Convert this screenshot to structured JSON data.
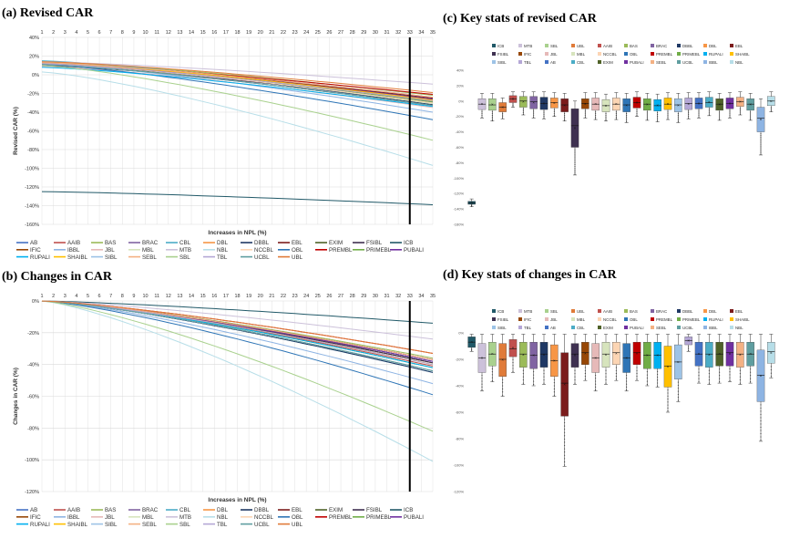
{
  "figure": {
    "panel_a_title": "(a) Revised CAR",
    "panel_b_title": "(b) Changes in CAR",
    "panel_c_title": "(c) Key stats of revised CAR",
    "panel_d_title": "(d) Key stats of changes in CAR"
  },
  "banks": [
    "AB",
    "AAIB",
    "BAS",
    "BRAC",
    "CBL",
    "DBL",
    "DBBL",
    "EBL",
    "EXIM",
    "FSIBL",
    "ICB",
    "IFIC",
    "IBBL",
    "JBL",
    "MBL",
    "MTB",
    "NBL",
    "NCCBL",
    "OBL",
    "PREMBL",
    "PRIMEBL",
    "PUBALI",
    "RUPALI",
    "SHAIBL",
    "SIBL",
    "SEBL",
    "SBL",
    "TBL",
    "UCBL",
    "UBL"
  ],
  "box_banks": [
    "ICB",
    "MTB",
    "SBL",
    "UBL",
    "AAIB",
    "BAS",
    "BRAC",
    "DBBL",
    "DBL",
    "EBL",
    "FSIBL",
    "IFIC",
    "JBL",
    "MBL",
    "NCCBL",
    "OBL",
    "PREMBL",
    "PRIMEBL",
    "RUPALI",
    "SHAIBL",
    "SIBL",
    "TBL",
    "AB",
    "CBL",
    "EXIM",
    "PUBALI",
    "SEBL",
    "UCBL",
    "IBBL",
    "NBL"
  ],
  "colors": [
    "#4472c4",
    "#c0504d",
    "#9bbb59",
    "#8064a2",
    "#4bacc6",
    "#f79646",
    "#1f3864",
    "#7b1c1c",
    "#4f6228",
    "#3f3151",
    "#215968",
    "#974706",
    "#8eb4e3",
    "#e6b9b8",
    "#d7e4bd",
    "#ccc1da",
    "#b7dee8",
    "#fcd5b4",
    "#2e75b6",
    "#c00000",
    "#70ad47",
    "#7030a0",
    "#00b0f0",
    "#ffc000",
    "#9dc3e6",
    "#f4b183",
    "#a9d18e",
    "#b4a7d6",
    "#5f9ea0",
    "#e07b39"
  ],
  "chart_data": [
    {
      "type": "line",
      "title": "(a) Revised CAR",
      "xlabel": "Increases in NPL (%)",
      "ylabel": "Revised CAR (%)",
      "x": [
        1,
        2,
        3,
        4,
        5,
        6,
        7,
        8,
        9,
        10,
        11,
        12,
        13,
        14,
        15,
        16,
        17,
        18,
        19,
        20,
        21,
        22,
        23,
        24,
        25,
        26,
        27,
        28,
        29,
        30,
        31,
        32,
        33,
        34,
        35
      ],
      "xlim": [
        1,
        35
      ],
      "ylim": [
        -160,
        40
      ],
      "yticks": [
        40,
        20,
        0,
        -20,
        -40,
        -60,
        -80,
        -100,
        -120,
        -140,
        -160
      ],
      "vline_x": 33,
      "legend": "bottom",
      "series": [
        {
          "name": "AB",
          "start": 12,
          "end": -26
        },
        {
          "name": "AAIB",
          "start": 13,
          "end": -28
        },
        {
          "name": "BAS",
          "start": 14,
          "end": -22
        },
        {
          "name": "BRAC",
          "start": 13,
          "end": -24
        },
        {
          "name": "CBL",
          "start": 15,
          "end": -30
        },
        {
          "name": "DBL",
          "start": 12,
          "end": -27
        },
        {
          "name": "DBBL",
          "start": 13,
          "end": -32
        },
        {
          "name": "EBL",
          "start": 12,
          "end": -25
        },
        {
          "name": "EXIM",
          "start": 11,
          "end": -28
        },
        {
          "name": "FSIBL",
          "start": 10,
          "end": -29
        },
        {
          "name": "ICB",
          "start": -125,
          "end": -139
        },
        {
          "name": "IFIC",
          "start": 11,
          "end": -33
        },
        {
          "name": "IBBL",
          "start": 12,
          "end": -40
        },
        {
          "name": "JBL",
          "start": 9,
          "end": -35
        },
        {
          "name": "MBL",
          "start": 13,
          "end": -31
        },
        {
          "name": "MTB",
          "start": 14,
          "end": -10
        },
        {
          "name": "NBL",
          "start": 3,
          "end": -97
        },
        {
          "name": "NCCBL",
          "start": 12,
          "end": -30
        },
        {
          "name": "OBL",
          "start": 11,
          "end": -48
        },
        {
          "name": "PREMBL",
          "start": 12,
          "end": -21
        },
        {
          "name": "PRIMEBL",
          "start": 13,
          "end": -29
        },
        {
          "name": "PUBALI",
          "start": 12,
          "end": -26
        },
        {
          "name": "RUPALI",
          "start": 8,
          "end": -34
        },
        {
          "name": "SHAIBL",
          "start": 13,
          "end": -27
        },
        {
          "name": "SIBL",
          "start": 11,
          "end": -33
        },
        {
          "name": "SEBL",
          "start": 13,
          "end": -24
        },
        {
          "name": "SBL",
          "start": 10,
          "end": -70
        },
        {
          "name": "TBL",
          "start": 12,
          "end": -28
        },
        {
          "name": "UCBL",
          "start": 11,
          "end": -33
        },
        {
          "name": "UBL",
          "start": 14,
          "end": -19
        }
      ]
    },
    {
      "type": "line",
      "title": "(b) Changes in CAR",
      "xlabel": "Increases in NPL (%)",
      "ylabel": "Changes in CAR (%)",
      "x": [
        1,
        2,
        3,
        4,
        5,
        6,
        7,
        8,
        9,
        10,
        11,
        12,
        13,
        14,
        15,
        16,
        17,
        18,
        19,
        20,
        21,
        22,
        23,
        24,
        25,
        26,
        27,
        28,
        29,
        30,
        31,
        32,
        33,
        34,
        35
      ],
      "xlim": [
        1,
        35
      ],
      "ylim": [
        -120,
        0
      ],
      "yticks": [
        0,
        -20,
        -40,
        -60,
        -80,
        -100,
        -120
      ],
      "vline_x": 33,
      "legend": "bottom",
      "series": [
        {
          "name": "AB",
          "end": -38
        },
        {
          "name": "AAIB",
          "end": -41
        },
        {
          "name": "BAS",
          "end": -36
        },
        {
          "name": "BRAC",
          "end": -37
        },
        {
          "name": "CBL",
          "end": -45
        },
        {
          "name": "DBL",
          "end": -39
        },
        {
          "name": "DBBL",
          "end": -45
        },
        {
          "name": "EBL",
          "end": -37
        },
        {
          "name": "EXIM",
          "end": -39
        },
        {
          "name": "FSIBL",
          "end": -39
        },
        {
          "name": "ICB",
          "end": -14
        },
        {
          "name": "IFIC",
          "end": -44
        },
        {
          "name": "IBBL",
          "end": -52
        },
        {
          "name": "JBL",
          "end": -44
        },
        {
          "name": "MBL",
          "end": -44
        },
        {
          "name": "MTB",
          "end": -24
        },
        {
          "name": "NBL",
          "end": -101
        },
        {
          "name": "NCCBL",
          "end": -42
        },
        {
          "name": "OBL",
          "end": -59
        },
        {
          "name": "PREMBL",
          "end": -33
        },
        {
          "name": "PRIMEBL",
          "end": -42
        },
        {
          "name": "PUBALI",
          "end": -38
        },
        {
          "name": "RUPALI",
          "end": -42
        },
        {
          "name": "SHAIBL",
          "end": -40
        },
        {
          "name": "SIBL",
          "end": -44
        },
        {
          "name": "SEBL",
          "end": -37
        },
        {
          "name": "SBL",
          "end": -82
        },
        {
          "name": "TBL",
          "end": -40
        },
        {
          "name": "UCBL",
          "end": -44
        },
        {
          "name": "UBL",
          "end": -33
        }
      ]
    },
    {
      "type": "box",
      "title": "(c) Key stats of revised CAR",
      "ylim": [
        -160,
        40
      ],
      "yticks": [
        40,
        20,
        0,
        -20,
        -40,
        -60,
        -80,
        -100,
        -120,
        -140,
        -160
      ],
      "legend": "top",
      "boxes": [
        {
          "name": "ICB",
          "q1": -134,
          "q3": -130,
          "median": -132,
          "min": -137,
          "max": -127
        },
        {
          "name": "MTB",
          "q1": -11,
          "q3": 3,
          "median": -4,
          "min": -22,
          "max": 10
        },
        {
          "name": "SBL",
          "q1": -12,
          "q3": 3,
          "median": -5,
          "min": -26,
          "max": 10
        },
        {
          "name": "UBL",
          "q1": -14,
          "q3": -2,
          "median": -8,
          "min": -23,
          "max": 4
        },
        {
          "name": "AAIB",
          "q1": -2,
          "q3": 7,
          "median": 3,
          "min": -8,
          "max": 12
        },
        {
          "name": "BAS",
          "q1": -8,
          "q3": 6,
          "median": 0,
          "min": -18,
          "max": 12
        },
        {
          "name": "BRAC",
          "q1": -10,
          "q3": 6,
          "median": -1,
          "min": -22,
          "max": 12
        },
        {
          "name": "DBBL",
          "q1": -11,
          "q3": 5,
          "median": -3,
          "min": -23,
          "max": 12
        },
        {
          "name": "DBL",
          "q1": -9,
          "q3": 4,
          "median": -2,
          "min": -20,
          "max": 11
        },
        {
          "name": "EBL",
          "q1": -14,
          "q3": 3,
          "median": -5,
          "min": -26,
          "max": 10
        },
        {
          "name": "FSIBL",
          "q1": -60,
          "q3": -10,
          "median": -32,
          "min": -96,
          "max": 0
        },
        {
          "name": "IFIC",
          "q1": -10,
          "q3": 3,
          "median": -3,
          "min": -22,
          "max": 11
        },
        {
          "name": "JBL",
          "q1": -12,
          "q3": 4,
          "median": -4,
          "min": -24,
          "max": 11
        },
        {
          "name": "MBL",
          "q1": -14,
          "q3": 2,
          "median": -6,
          "min": -26,
          "max": 9
        },
        {
          "name": "NCCBL",
          "q1": -12,
          "q3": 4,
          "median": -4,
          "min": -24,
          "max": 11
        },
        {
          "name": "OBL",
          "q1": -14,
          "q3": 3,
          "median": -5,
          "min": -28,
          "max": 10
        },
        {
          "name": "PREMBL",
          "q1": -9,
          "q3": 5,
          "median": -2,
          "min": -20,
          "max": 12
        },
        {
          "name": "PRIMEBL",
          "q1": -12,
          "q3": 3,
          "median": -4,
          "min": -25,
          "max": 10
        },
        {
          "name": "RUPALI",
          "q1": -13,
          "q3": 2,
          "median": -6,
          "min": -27,
          "max": 9
        },
        {
          "name": "SHAIBL",
          "q1": -11,
          "q3": 4,
          "median": -4,
          "min": -24,
          "max": 11
        },
        {
          "name": "SIBL",
          "q1": -14,
          "q3": 3,
          "median": -5,
          "min": -28,
          "max": 10
        },
        {
          "name": "TBL",
          "q1": -11,
          "q3": 4,
          "median": -3,
          "min": -23,
          "max": 11
        },
        {
          "name": "AB",
          "q1": -10,
          "q3": 4,
          "median": -3,
          "min": -22,
          "max": 11
        },
        {
          "name": "CBL",
          "q1": -8,
          "q3": 5,
          "median": -2,
          "min": -19,
          "max": 12
        },
        {
          "name": "EXIM",
          "q1": -12,
          "q3": 3,
          "median": -4,
          "min": -25,
          "max": 10
        },
        {
          "name": "PUBALI",
          "q1": -10,
          "q3": 4,
          "median": -3,
          "min": -22,
          "max": 11
        },
        {
          "name": "SEBL",
          "q1": -7,
          "q3": 5,
          "median": -1,
          "min": -18,
          "max": 12
        },
        {
          "name": "UCBL",
          "q1": -12,
          "q3": 3,
          "median": -4,
          "min": -25,
          "max": 10
        },
        {
          "name": "IBBL",
          "q1": -40,
          "q3": -8,
          "median": -22,
          "min": -70,
          "max": 3
        },
        {
          "name": "NBL",
          "q1": -6,
          "q3": 6,
          "median": 0,
          "min": -14,
          "max": 12
        }
      ]
    },
    {
      "type": "box",
      "title": "(d) Key stats of changes in CAR",
      "ylim": [
        -120,
        0
      ],
      "yticks": [
        0,
        -20,
        -40,
        -60,
        -80,
        -100,
        -120
      ],
      "legend": "top",
      "boxes": [
        {
          "name": "ICB",
          "q1": -11,
          "q3": -3,
          "median": -7,
          "min": -14,
          "max": -1
        },
        {
          "name": "MTB",
          "q1": -30,
          "q3": -8,
          "median": -19,
          "min": -44,
          "max": -1
        },
        {
          "name": "SBL",
          "q1": -25,
          "q3": -7,
          "median": -16,
          "min": -37,
          "max": -1
        },
        {
          "name": "UBL",
          "q1": -33,
          "q3": -8,
          "median": -20,
          "min": -48,
          "max": -1
        },
        {
          "name": "AAIB",
          "q1": -18,
          "q3": -5,
          "median": -12,
          "min": -30,
          "max": -1
        },
        {
          "name": "BAS",
          "q1": -26,
          "q3": -7,
          "median": -16,
          "min": -39,
          "max": -1
        },
        {
          "name": "BRAC",
          "q1": -27,
          "q3": -7,
          "median": -17,
          "min": -40,
          "max": -1
        },
        {
          "name": "DBBL",
          "q1": -26,
          "q3": -7,
          "median": -16,
          "min": -39,
          "max": -1
        },
        {
          "name": "DBL",
          "q1": -33,
          "q3": -9,
          "median": -21,
          "min": -48,
          "max": -1
        },
        {
          "name": "EBL",
          "q1": -63,
          "q3": -15,
          "median": -38,
          "min": -101,
          "max": -1
        },
        {
          "name": "FSIBL",
          "q1": -26,
          "q3": -8,
          "median": -16,
          "min": -39,
          "max": -1
        },
        {
          "name": "IFIC",
          "q1": -24,
          "q3": -7,
          "median": -15,
          "min": -36,
          "max": -1
        },
        {
          "name": "JBL",
          "q1": -30,
          "q3": -8,
          "median": -19,
          "min": -44,
          "max": -1
        },
        {
          "name": "MBL",
          "q1": -26,
          "q3": -7,
          "median": -16,
          "min": -39,
          "max": -1
        },
        {
          "name": "NCCBL",
          "q1": -24,
          "q3": -7,
          "median": -15,
          "min": -36,
          "max": -1
        },
        {
          "name": "OBL",
          "q1": -30,
          "q3": -8,
          "median": -19,
          "min": -44,
          "max": -1
        },
        {
          "name": "PREMBL",
          "q1": -24,
          "q3": -7,
          "median": -15,
          "min": -36,
          "max": -1
        },
        {
          "name": "PRIMEBL",
          "q1": -27,
          "q3": -7,
          "median": -17,
          "min": -40,
          "max": -1
        },
        {
          "name": "RUPALI",
          "q1": -27,
          "q3": -7,
          "median": -17,
          "min": -41,
          "max": -1
        },
        {
          "name": "SHAIBL",
          "q1": -41,
          "q3": -10,
          "median": -25,
          "min": -60,
          "max": -1
        },
        {
          "name": "SIBL",
          "q1": -35,
          "q3": -9,
          "median": -22,
          "min": -52,
          "max": -1
        },
        {
          "name": "TBL",
          "q1": -9,
          "q3": -3,
          "median": -6,
          "min": -14,
          "max": -1
        },
        {
          "name": "AB",
          "q1": -25,
          "q3": -7,
          "median": -16,
          "min": -38,
          "max": -1
        },
        {
          "name": "CBL",
          "q1": -26,
          "q3": -7,
          "median": -16,
          "min": -39,
          "max": -1
        },
        {
          "name": "EXIM",
          "q1": -25,
          "q3": -7,
          "median": -16,
          "min": -38,
          "max": -1
        },
        {
          "name": "PUBALI",
          "q1": -25,
          "q3": -7,
          "median": -15,
          "min": -37,
          "max": -1
        },
        {
          "name": "SEBL",
          "q1": -26,
          "q3": -7,
          "median": -16,
          "min": -39,
          "max": -1
        },
        {
          "name": "UCBL",
          "q1": -25,
          "q3": -7,
          "median": -16,
          "min": -38,
          "max": -1
        },
        {
          "name": "IBBL",
          "q1": -52,
          "q3": -13,
          "median": -32,
          "min": -82,
          "max": -1
        },
        {
          "name": "NBL",
          "q1": -23,
          "q3": -7,
          "median": -14,
          "min": -34,
          "max": -1
        }
      ]
    }
  ]
}
